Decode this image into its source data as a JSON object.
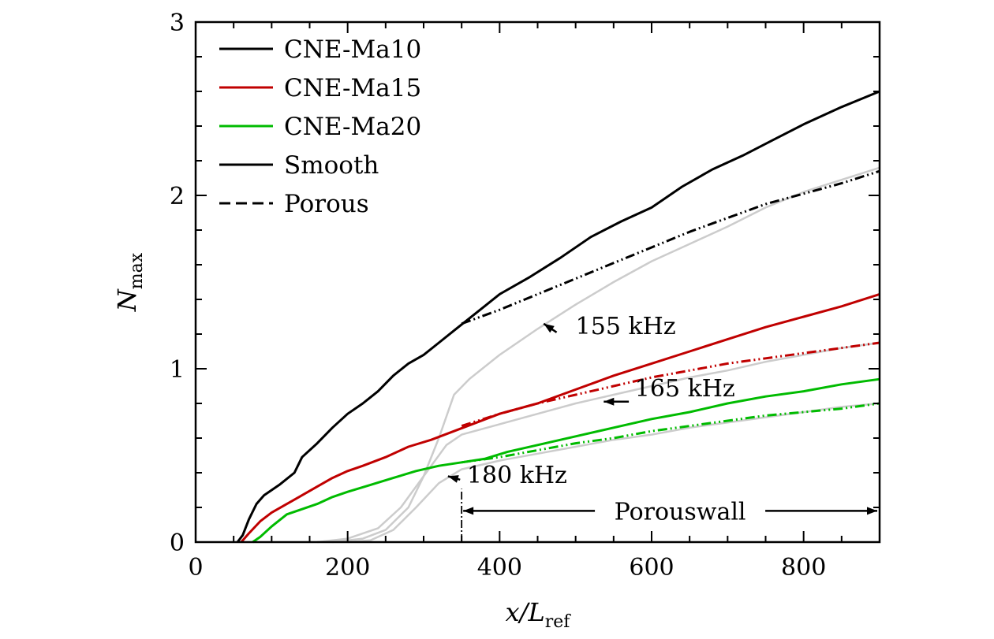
{
  "chart_data": {
    "type": "line",
    "xlabel": "x/L",
    "xlabel_sub": "ref",
    "ylabel": "N",
    "ylabel_sub": "max",
    "xlim": [
      0,
      900
    ],
    "ylim": [
      0,
      3
    ],
    "x_ticks": [
      0,
      200,
      400,
      600,
      800
    ],
    "y_ticks": [
      0,
      1,
      2,
      3
    ],
    "legend": {
      "position": "top-left",
      "entries": [
        {
          "label": "CNE-Ma10",
          "color": "#000000",
          "dash": "solid"
        },
        {
          "label": "CNE-Ma15",
          "color": "#c00000",
          "dash": "solid"
        },
        {
          "label": "CNE-Ma20",
          "color": "#00bb00",
          "dash": "solid"
        },
        {
          "label": "Smooth",
          "color": "#000000",
          "dash": "solid"
        },
        {
          "label": "Porous",
          "color": "#000000",
          "dash": "dashed"
        }
      ]
    },
    "series": [
      {
        "name": "CNE-Ma10 Smooth",
        "color": "#000000",
        "dash": "solid",
        "points": [
          [
            55,
            0
          ],
          [
            62,
            0.04
          ],
          [
            70,
            0.13
          ],
          [
            80,
            0.22
          ],
          [
            90,
            0.27
          ],
          [
            110,
            0.33
          ],
          [
            130,
            0.4
          ],
          [
            140,
            0.49
          ],
          [
            160,
            0.57
          ],
          [
            180,
            0.66
          ],
          [
            200,
            0.74
          ],
          [
            220,
            0.8
          ],
          [
            240,
            0.87
          ],
          [
            260,
            0.96
          ],
          [
            280,
            1.03
          ],
          [
            300,
            1.08
          ],
          [
            320,
            1.15
          ],
          [
            340,
            1.22
          ],
          [
            360,
            1.29
          ],
          [
            380,
            1.36
          ],
          [
            400,
            1.43
          ],
          [
            440,
            1.53
          ],
          [
            480,
            1.64
          ],
          [
            520,
            1.76
          ],
          [
            560,
            1.85
          ],
          [
            600,
            1.93
          ],
          [
            640,
            2.05
          ],
          [
            680,
            2.15
          ],
          [
            720,
            2.23
          ],
          [
            760,
            2.32
          ],
          [
            800,
            2.41
          ],
          [
            850,
            2.51
          ],
          [
            900,
            2.6
          ]
        ]
      },
      {
        "name": "CNE-Ma10 Porous",
        "color": "#000000",
        "dash": "dashdot",
        "points": [
          [
            350,
            1.26
          ],
          [
            400,
            1.34
          ],
          [
            450,
            1.43
          ],
          [
            500,
            1.52
          ],
          [
            550,
            1.61
          ],
          [
            600,
            1.7
          ],
          [
            650,
            1.79
          ],
          [
            700,
            1.87
          ],
          [
            750,
            1.95
          ],
          [
            800,
            2.01
          ],
          [
            850,
            2.07
          ],
          [
            900,
            2.14
          ]
        ]
      },
      {
        "name": "CNE-Ma15 Smooth",
        "color": "#c00000",
        "dash": "solid",
        "points": [
          [
            60,
            0
          ],
          [
            70,
            0.05
          ],
          [
            85,
            0.12
          ],
          [
            100,
            0.17
          ],
          [
            120,
            0.22
          ],
          [
            140,
            0.27
          ],
          [
            160,
            0.32
          ],
          [
            180,
            0.37
          ],
          [
            200,
            0.41
          ],
          [
            220,
            0.44
          ],
          [
            250,
            0.49
          ],
          [
            280,
            0.55
          ],
          [
            310,
            0.59
          ],
          [
            340,
            0.64
          ],
          [
            370,
            0.69
          ],
          [
            400,
            0.74
          ],
          [
            450,
            0.8
          ],
          [
            500,
            0.88
          ],
          [
            550,
            0.96
          ],
          [
            600,
            1.03
          ],
          [
            650,
            1.1
          ],
          [
            700,
            1.17
          ],
          [
            750,
            1.24
          ],
          [
            800,
            1.3
          ],
          [
            850,
            1.36
          ],
          [
            900,
            1.43
          ]
        ]
      },
      {
        "name": "CNE-Ma15 Porous",
        "color": "#c00000",
        "dash": "dashdot",
        "points": [
          [
            350,
            0.67
          ],
          [
            400,
            0.74
          ],
          [
            450,
            0.8
          ],
          [
            500,
            0.85
          ],
          [
            550,
            0.9
          ],
          [
            600,
            0.95
          ],
          [
            650,
            0.99
          ],
          [
            700,
            1.03
          ],
          [
            750,
            1.06
          ],
          [
            800,
            1.09
          ],
          [
            850,
            1.12
          ],
          [
            900,
            1.15
          ]
        ]
      },
      {
        "name": "CNE-Ma20 Smooth",
        "color": "#00bb00",
        "dash": "solid",
        "points": [
          [
            75,
            0
          ],
          [
            85,
            0.03
          ],
          [
            100,
            0.09
          ],
          [
            120,
            0.16
          ],
          [
            140,
            0.19
          ],
          [
            160,
            0.22
          ],
          [
            180,
            0.26
          ],
          [
            200,
            0.29
          ],
          [
            230,
            0.33
          ],
          [
            260,
            0.37
          ],
          [
            290,
            0.41
          ],
          [
            320,
            0.44
          ],
          [
            350,
            0.46
          ],
          [
            380,
            0.48
          ],
          [
            410,
            0.52
          ],
          [
            450,
            0.56
          ],
          [
            500,
            0.61
          ],
          [
            550,
            0.66
          ],
          [
            600,
            0.71
          ],
          [
            650,
            0.75
          ],
          [
            700,
            0.8
          ],
          [
            750,
            0.84
          ],
          [
            800,
            0.87
          ],
          [
            850,
            0.91
          ],
          [
            900,
            0.94
          ]
        ]
      },
      {
        "name": "CNE-Ma20 Porous",
        "color": "#00bb00",
        "dash": "dashdot",
        "points": [
          [
            350,
            0.46
          ],
          [
            400,
            0.49
          ],
          [
            450,
            0.53
          ],
          [
            500,
            0.57
          ],
          [
            550,
            0.6
          ],
          [
            600,
            0.64
          ],
          [
            650,
            0.67
          ],
          [
            700,
            0.7
          ],
          [
            750,
            0.73
          ],
          [
            800,
            0.75
          ],
          [
            850,
            0.77
          ],
          [
            900,
            0.8
          ]
        ]
      },
      {
        "name": "155 kHz",
        "color": "#cccccc",
        "dash": "solid",
        "points": [
          [
            180,
            0
          ],
          [
            220,
            0.02
          ],
          [
            250,
            0.07
          ],
          [
            280,
            0.2
          ],
          [
            300,
            0.38
          ],
          [
            320,
            0.6
          ],
          [
            340,
            0.85
          ],
          [
            360,
            0.94
          ],
          [
            400,
            1.08
          ],
          [
            450,
            1.23
          ],
          [
            500,
            1.37
          ],
          [
            550,
            1.5
          ],
          [
            600,
            1.62
          ],
          [
            650,
            1.72
          ],
          [
            700,
            1.82
          ],
          [
            750,
            1.93
          ],
          [
            800,
            2.02
          ],
          [
            850,
            2.09
          ],
          [
            900,
            2.16
          ]
        ]
      },
      {
        "name": "165 kHz",
        "color": "#cccccc",
        "dash": "solid",
        "points": [
          [
            160,
            0
          ],
          [
            200,
            0.02
          ],
          [
            240,
            0.08
          ],
          [
            270,
            0.2
          ],
          [
            300,
            0.38
          ],
          [
            330,
            0.56
          ],
          [
            350,
            0.62
          ],
          [
            400,
            0.68
          ],
          [
            450,
            0.74
          ],
          [
            500,
            0.8
          ],
          [
            550,
            0.85
          ],
          [
            600,
            0.9
          ],
          [
            650,
            0.95
          ],
          [
            700,
            0.99
          ],
          [
            750,
            1.04
          ],
          [
            800,
            1.08
          ],
          [
            850,
            1.12
          ],
          [
            900,
            1.15
          ]
        ]
      },
      {
        "name": "180 kHz",
        "color": "#cccccc",
        "dash": "solid",
        "points": [
          [
            200,
            0
          ],
          [
            230,
            0.01
          ],
          [
            260,
            0.07
          ],
          [
            290,
            0.2
          ],
          [
            320,
            0.34
          ],
          [
            350,
            0.42
          ],
          [
            400,
            0.47
          ],
          [
            450,
            0.51
          ],
          [
            500,
            0.55
          ],
          [
            550,
            0.59
          ],
          [
            600,
            0.62
          ],
          [
            650,
            0.66
          ],
          [
            700,
            0.69
          ],
          [
            750,
            0.72
          ],
          [
            800,
            0.75
          ],
          [
            850,
            0.78
          ],
          [
            900,
            0.8
          ]
        ]
      }
    ],
    "annotations": [
      {
        "text": "155 kHz",
        "x": 500,
        "y": 1.2,
        "arrow_from": [
          475,
          1.21
        ],
        "arrow_to": [
          458,
          1.26
        ]
      },
      {
        "text": "165 kHz",
        "x": 578,
        "y": 0.84,
        "arrow_from": [
          570,
          0.81
        ],
        "arrow_to": [
          537,
          0.81
        ]
      },
      {
        "text": "180 kHz",
        "x": 357,
        "y": 0.34,
        "arrow_from": [
          348,
          0.36
        ],
        "arrow_to": [
          332,
          0.38
        ]
      }
    ],
    "porous_wall": {
      "label": "Porouswall",
      "x_start": 350,
      "x_end": 900,
      "y": 0.18
    }
  }
}
